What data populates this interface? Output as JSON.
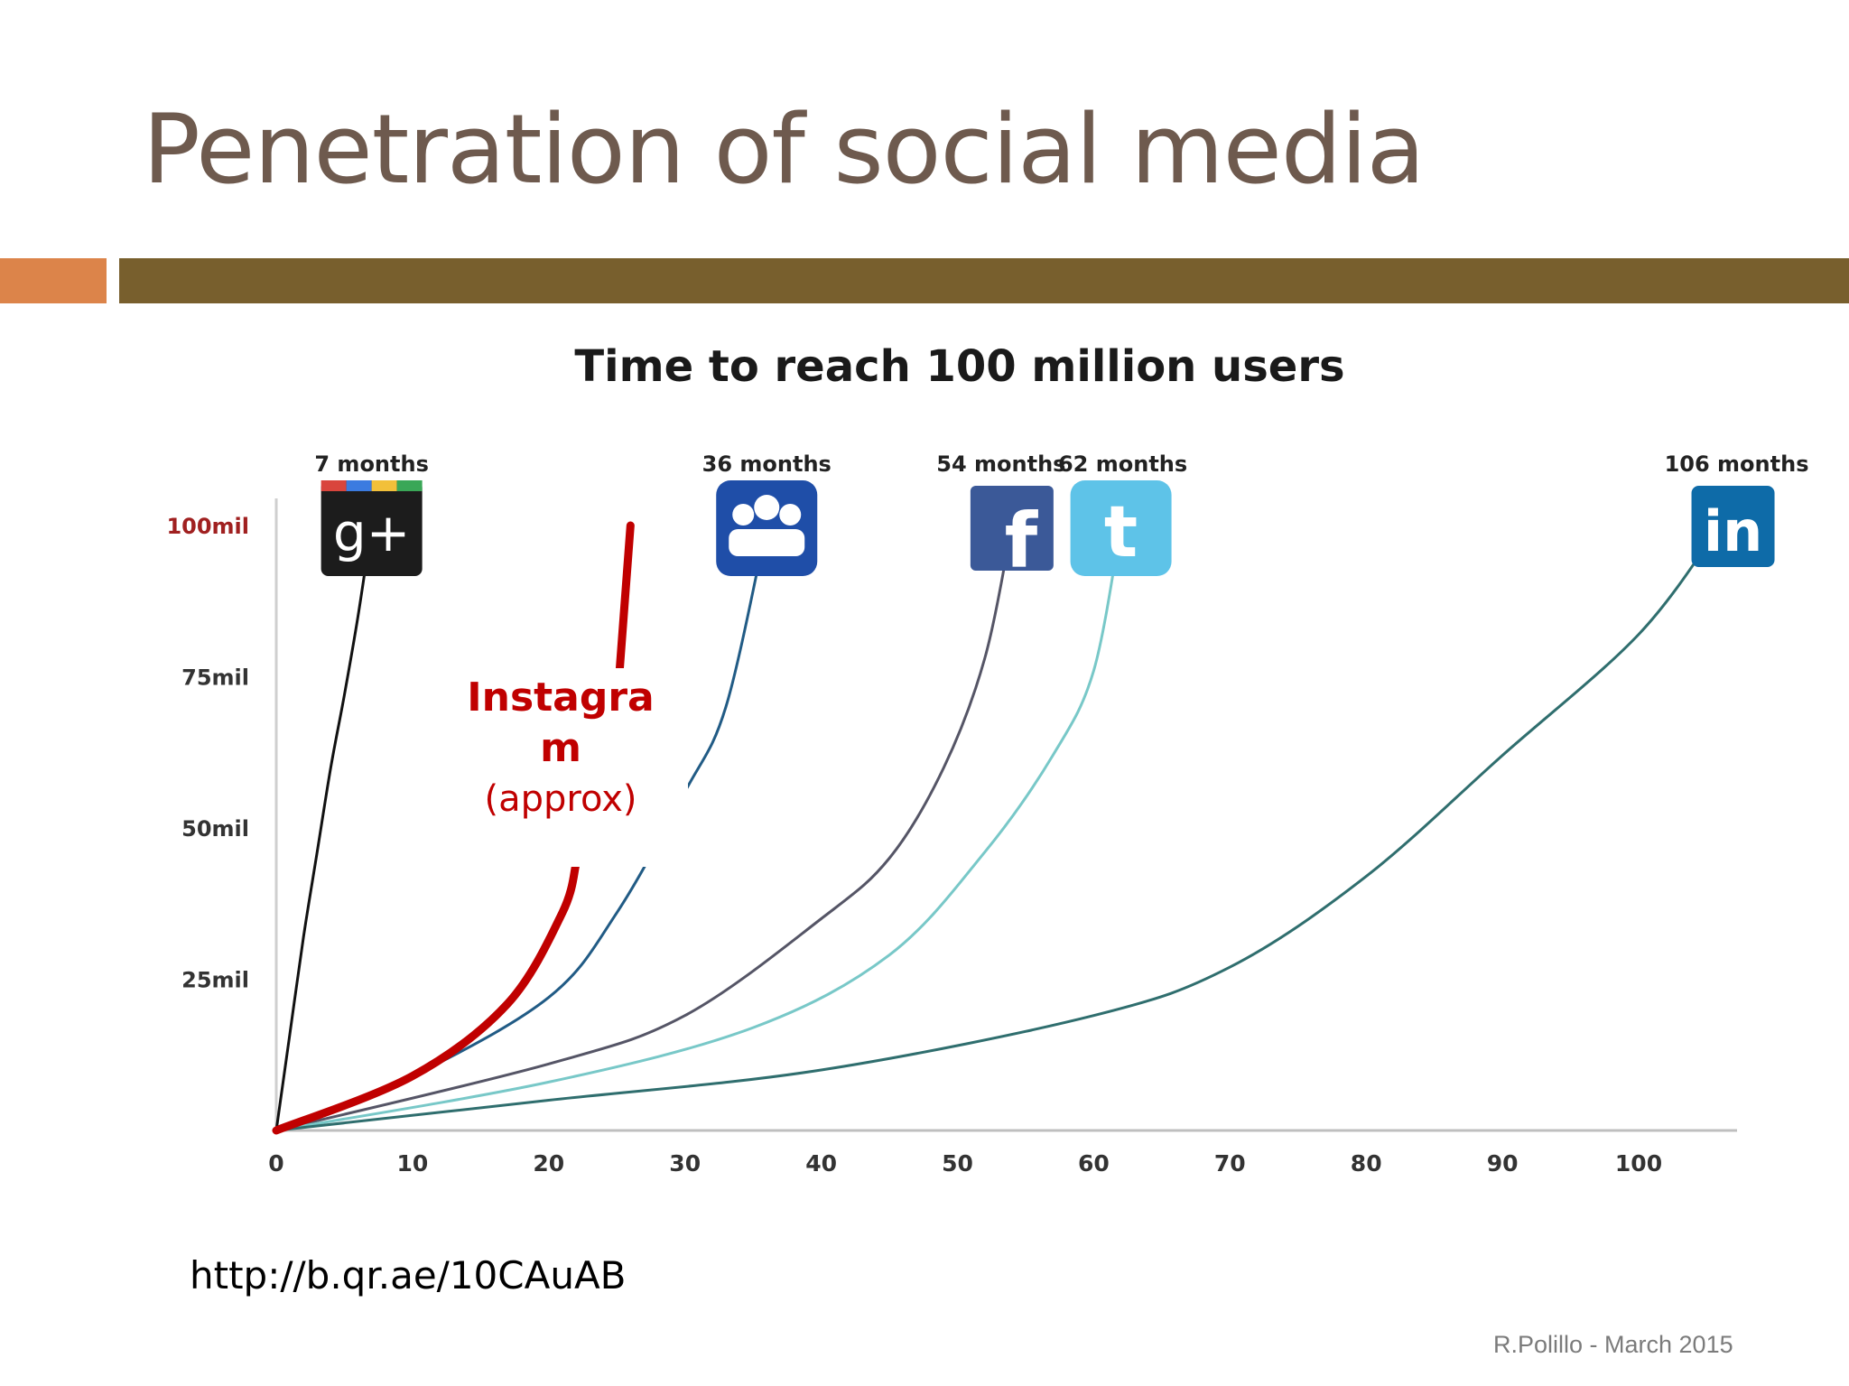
{
  "slide": {
    "title": "Penetration of social media",
    "source_url": "http://b.qr.ae/10CAuAB",
    "footer": "R.Polillo - March 2015",
    "colors": {
      "title": "#6e5a4e",
      "accent_bar": "#dc844a",
      "main_bar": "#785f2d",
      "instagram": "#c00000"
    }
  },
  "chart_data": {
    "type": "line",
    "title": "Time to reach 100 million users",
    "xlabel": "",
    "ylabel": "",
    "xlim": [
      0,
      106
    ],
    "ylim": [
      0,
      100
    ],
    "x_ticks": [
      0,
      10,
      20,
      30,
      40,
      50,
      60,
      70,
      80,
      90,
      100
    ],
    "y_ticks": [
      {
        "value": 25,
        "label": "25mil"
      },
      {
        "value": 50,
        "label": "50mil"
      },
      {
        "value": 75,
        "label": "75mil"
      },
      {
        "value": 100,
        "label": "100mil"
      }
    ],
    "series": [
      {
        "name": "Google+",
        "icon": "google-plus-icon",
        "color": "#111111",
        "label": "7 months",
        "months": 7,
        "points": [
          [
            0,
            0
          ],
          [
            1,
            16
          ],
          [
            2,
            32
          ],
          [
            3,
            46
          ],
          [
            4,
            60
          ],
          [
            5,
            72
          ],
          [
            6,
            85
          ],
          [
            7,
            100
          ]
        ]
      },
      {
        "name": "MySpace",
        "icon": "myspace-icon",
        "color": "#215b85",
        "label": "36 months",
        "months": 36,
        "points": [
          [
            0,
            0
          ],
          [
            10,
            9
          ],
          [
            20,
            22
          ],
          [
            25,
            36
          ],
          [
            30,
            56
          ],
          [
            33,
            70
          ],
          [
            36,
            100
          ]
        ]
      },
      {
        "name": "Facebook",
        "icon": "facebook-icon",
        "color": "#555566",
        "label": "54 months",
        "months": 54,
        "points": [
          [
            0,
            0
          ],
          [
            20,
            11
          ],
          [
            30,
            19
          ],
          [
            40,
            35
          ],
          [
            45,
            45
          ],
          [
            49,
            60
          ],
          [
            52,
            78
          ],
          [
            54,
            100
          ]
        ]
      },
      {
        "name": "Twitter",
        "icon": "twitter-icon",
        "color": "#78c8c8",
        "label": "62 months",
        "months": 62,
        "points": [
          [
            0,
            0
          ],
          [
            20,
            8
          ],
          [
            35,
            17
          ],
          [
            45,
            29
          ],
          [
            52,
            46
          ],
          [
            57,
            62
          ],
          [
            60,
            76
          ],
          [
            62,
            100
          ]
        ]
      },
      {
        "name": "LinkedIn",
        "icon": "linkedin-icon",
        "color": "#2f6e6e",
        "label": "106 months",
        "months": 106,
        "points": [
          [
            0,
            0
          ],
          [
            20,
            5
          ],
          [
            40,
            10
          ],
          [
            60,
            19
          ],
          [
            70,
            27
          ],
          [
            80,
            42
          ],
          [
            90,
            62
          ],
          [
            100,
            82
          ],
          [
            106,
            100
          ]
        ]
      }
    ],
    "instagram": {
      "label": "Instagram",
      "note": "(approx)",
      "color": "#c00000",
      "points": [
        [
          0,
          0
        ],
        [
          10,
          9
        ],
        [
          17,
          21
        ],
        [
          21,
          36
        ],
        [
          22,
          44
        ]
      ],
      "upper_points": [
        [
          25,
          70
        ],
        [
          26,
          100
        ]
      ]
    }
  }
}
